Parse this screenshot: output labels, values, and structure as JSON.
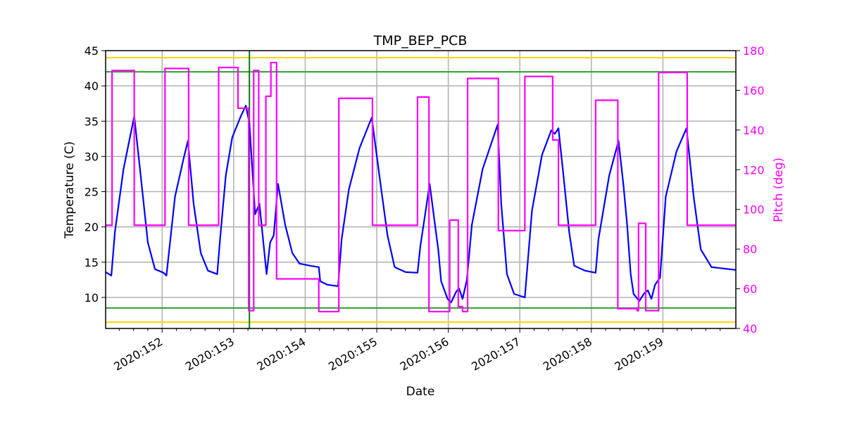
{
  "chart_data": {
    "type": "line",
    "title": "TMP_BEP_PCB",
    "xlabel": "Date",
    "ylabel": "Temperature (C)",
    "y2label": "Pitch (deg)",
    "xlim": [
      151.21,
      160.02
    ],
    "ylim": [
      5.6,
      45
    ],
    "y2lim": [
      40,
      180
    ],
    "grid": true,
    "x_ticks": [
      152,
      153,
      154,
      155,
      156,
      157,
      158,
      159
    ],
    "x_tick_labels": [
      "2020:152",
      "2020:153",
      "2020:154",
      "2020:155",
      "2020:156",
      "2020:157",
      "2020:158",
      "2020:159"
    ],
    "y_ticks": [
      10,
      15,
      20,
      25,
      30,
      35,
      40,
      45
    ],
    "y_tick_labels": [
      "10",
      "15",
      "20",
      "25",
      "30",
      "35",
      "40",
      "45"
    ],
    "y2_ticks": [
      40,
      60,
      80,
      100,
      120,
      140,
      160,
      180
    ],
    "y2_tick_labels": [
      "40",
      "60",
      "80",
      "100",
      "120",
      "140",
      "160",
      "180"
    ],
    "colors": {
      "temperature": "#0000ff",
      "pitch": "#ff00ff",
      "limit_yellow": "#ffd700",
      "limit_green": "#2ca02c",
      "marker_line": "#008000",
      "grid": "#b0b0b0"
    },
    "hlines": [
      {
        "y": 44,
        "color": "#ffd700"
      },
      {
        "y": 42,
        "color": "#2ca02c"
      },
      {
        "y": 8.5,
        "color": "#2ca02c"
      },
      {
        "y": 6.5,
        "color": "#ffd700"
      }
    ],
    "vline": {
      "x": 153.22,
      "color": "#008000"
    },
    "series": [
      {
        "axis": "left",
        "color": "#0000ff",
        "style": "line",
        "x": [
          151.21,
          151.29,
          151.34,
          151.46,
          151.61,
          151.7,
          151.8,
          151.9,
          152.02,
          152.06,
          152.18,
          152.3,
          152.36,
          152.44,
          152.54,
          152.64,
          152.77,
          152.81,
          152.89,
          152.98,
          153.04,
          153.1,
          153.17,
          153.22,
          153.3,
          153.36,
          153.4,
          153.46,
          153.51,
          153.56,
          153.62,
          153.72,
          153.82,
          153.92,
          154.07,
          154.19,
          154.21,
          154.31,
          154.46,
          154.51,
          154.61,
          154.76,
          154.93,
          155.05,
          155.15,
          155.25,
          155.4,
          155.57,
          155.61,
          155.74,
          155.84,
          155.86,
          155.9,
          155.99,
          156.04,
          156.11,
          156.15,
          156.2,
          156.26,
          156.33,
          156.48,
          156.63,
          156.69,
          156.74,
          156.82,
          156.92,
          157.07,
          157.17,
          157.31,
          157.44,
          157.49,
          157.54,
          157.61,
          157.69,
          157.76,
          157.91,
          158.06,
          158.1,
          158.25,
          158.38,
          158.45,
          158.5,
          158.55,
          158.59,
          158.67,
          158.74,
          158.79,
          158.84,
          158.89,
          158.96,
          159.04,
          159.19,
          159.33,
          159.43,
          159.53,
          159.68,
          160.02
        ],
        "y": [
          13.6,
          13.1,
          19.3,
          28.2,
          35.7,
          27.3,
          17.8,
          14.0,
          13.5,
          13.1,
          24.3,
          29.7,
          32.2,
          23.3,
          16.3,
          13.8,
          13.3,
          18.3,
          27.3,
          32.7,
          34.2,
          35.7,
          37.2,
          34.7,
          21.8,
          23.3,
          19.3,
          13.3,
          17.8,
          18.8,
          26.1,
          20.3,
          16.3,
          14.8,
          14.5,
          14.3,
          12.3,
          11.8,
          11.6,
          18.3,
          25.3,
          31.2,
          35.5,
          26.3,
          18.8,
          14.3,
          13.6,
          13.5,
          17.3,
          26.1,
          18.3,
          16.8,
          12.3,
          9.8,
          9.3,
          10.8,
          11.3,
          9.8,
          12.5,
          20.3,
          28.2,
          32.7,
          34.5,
          23.3,
          13.3,
          10.5,
          10.0,
          22.3,
          30.2,
          33.7,
          33.2,
          34.0,
          27.3,
          19.3,
          14.5,
          13.8,
          13.5,
          18.3,
          27.3,
          32.2,
          25.8,
          20.3,
          13.3,
          10.5,
          9.5,
          10.6,
          11.0,
          9.8,
          11.8,
          12.8,
          24.3,
          30.7,
          34.0,
          24.3,
          16.8,
          14.3,
          13.9
        ]
      },
      {
        "axis": "right",
        "color": "#ff00ff",
        "style": "step",
        "x": [
          151.21,
          151.3,
          151.61,
          152.04,
          152.37,
          152.79,
          153.06,
          153.21,
          153.28,
          153.35,
          153.45,
          153.52,
          153.6,
          154.19,
          154.47,
          154.94,
          155.57,
          155.73,
          156.02,
          156.14,
          156.2,
          156.27,
          156.7,
          157.07,
          157.46,
          157.54,
          158.06,
          158.37,
          158.64,
          158.66,
          158.76,
          158.94,
          159.34,
          160.02
        ],
        "y": [
          92,
          170,
          92,
          171,
          92,
          171.5,
          151,
          49,
          170,
          92,
          157,
          174,
          65,
          48.5,
          156,
          92,
          156.6,
          48.5,
          94.6,
          51,
          48.5,
          166,
          89.3,
          167,
          135,
          92,
          155,
          50,
          49,
          93,
          49,
          169,
          92,
          92
        ]
      }
    ]
  }
}
